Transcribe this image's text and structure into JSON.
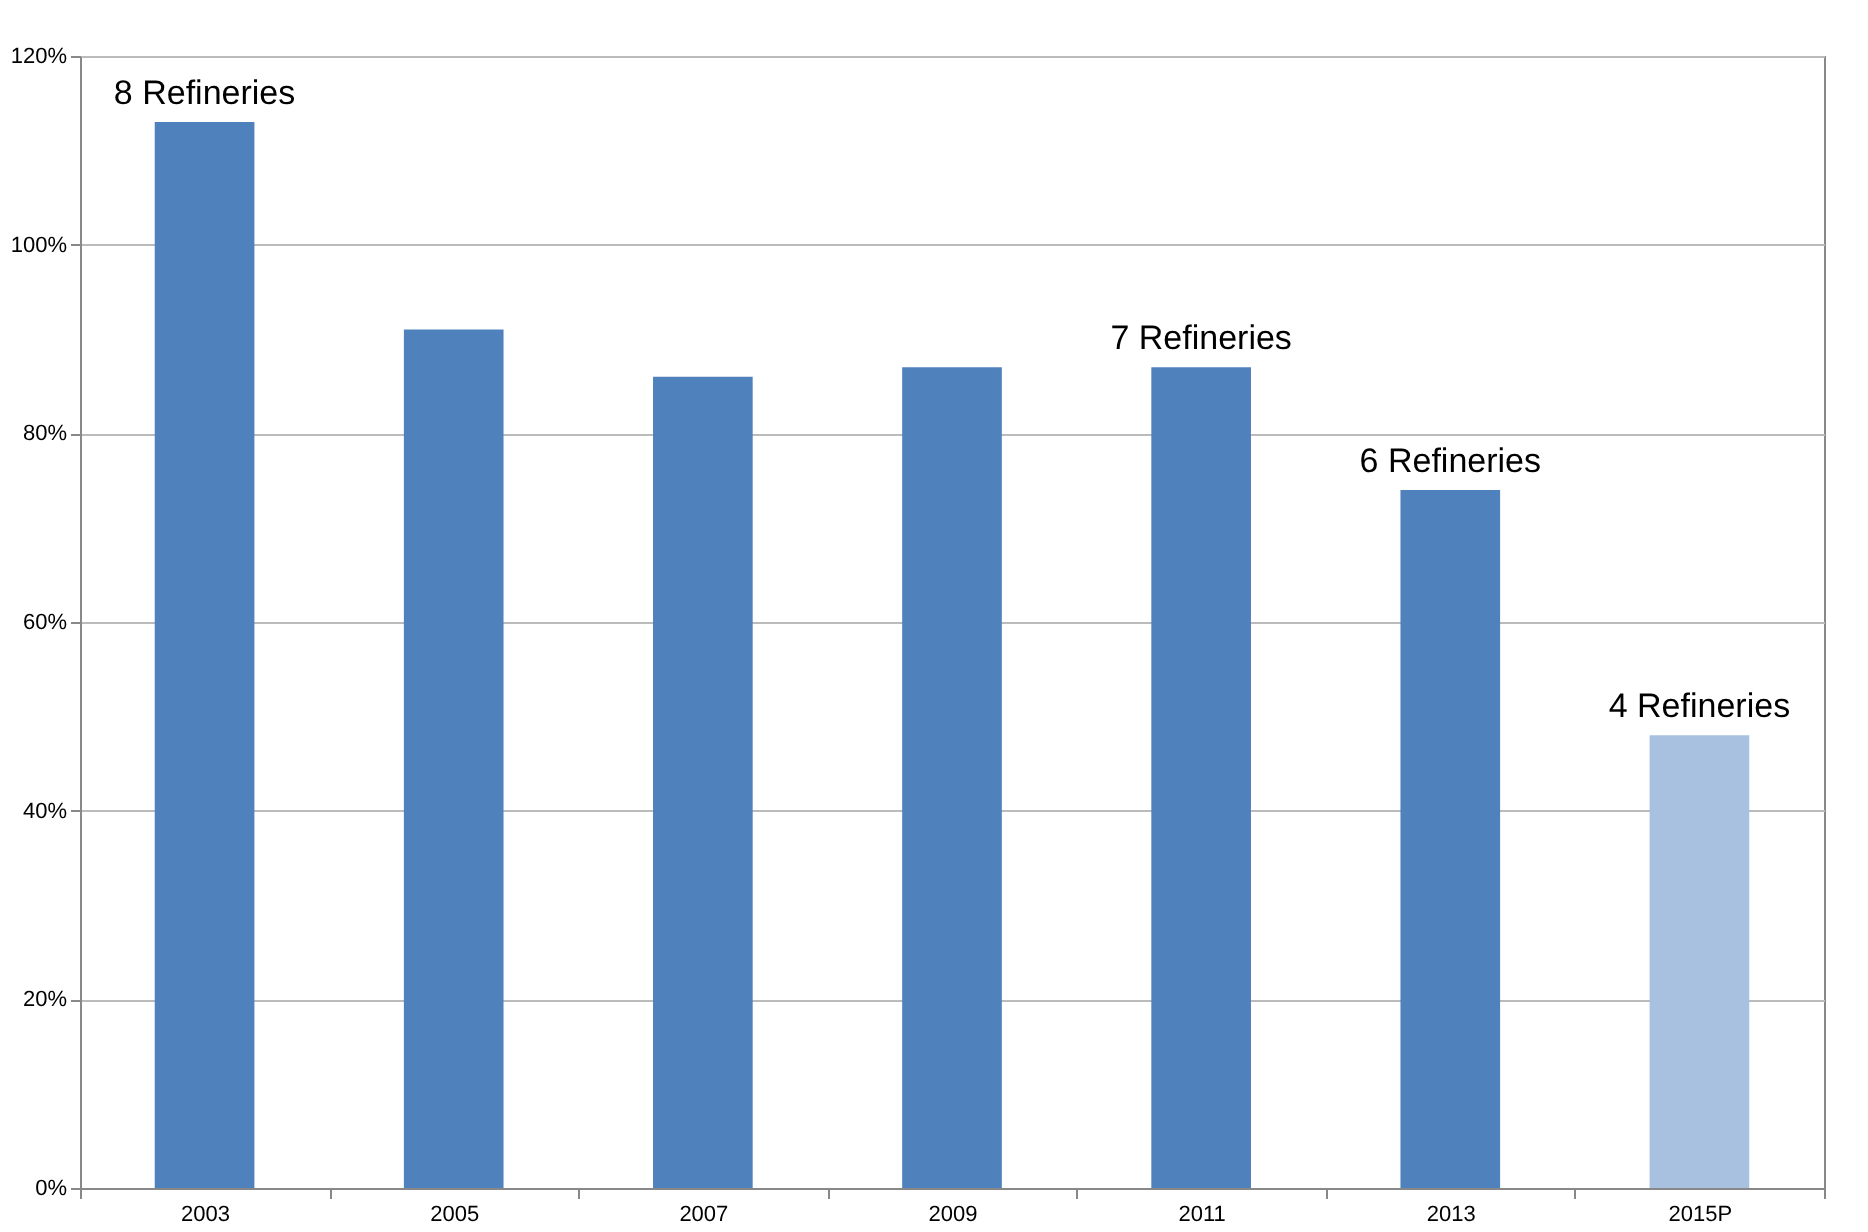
{
  "chart_data": {
    "type": "bar",
    "categories": [
      "2003",
      "2005",
      "2007",
      "2009",
      "2011",
      "2013",
      "2015P"
    ],
    "values": [
      113,
      91,
      86,
      87,
      87,
      74,
      48
    ],
    "colors": [
      "#4f81bd",
      "#4f81bd",
      "#4f81bd",
      "#4f81bd",
      "#4f81bd",
      "#4f81bd",
      "#a9c1e0"
    ],
    "ylim": [
      0,
      120
    ],
    "yticks": [
      {
        "value": 0,
        "label": "0%"
      },
      {
        "value": 20,
        "label": "20%"
      },
      {
        "value": 40,
        "label": "40%"
      },
      {
        "value": 60,
        "label": "60%"
      },
      {
        "value": 80,
        "label": "80%"
      },
      {
        "value": 100,
        "label": "100%"
      },
      {
        "value": 120,
        "label": "120%"
      }
    ],
    "grid": "y",
    "annotations": [
      {
        "text": "8 Refineries",
        "x": "2003",
        "y": 113
      },
      {
        "text": "7 Refineries",
        "x": "2011",
        "y": 87
      },
      {
        "text": "6 Refineries",
        "x": "2013",
        "y": 74
      },
      {
        "text": "4 Refineries",
        "x": "2015P",
        "y": 48
      }
    ]
  }
}
